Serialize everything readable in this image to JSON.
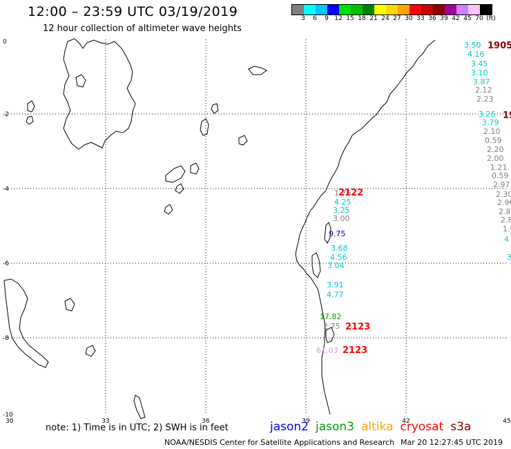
{
  "header": {
    "title": "12:00 – 23:59 UTC 03/19/2019",
    "subtitle": "12 hour collection of altimeter wave heights"
  },
  "legend": {
    "colors": [
      "#808080",
      "#00ffff",
      "#00c8ff",
      "#0000ff",
      "#00e000",
      "#00c000",
      "#008000",
      "#ffff00",
      "#ffd700",
      "#ffa500",
      "#ff0000",
      "#c80000",
      "#8b0000",
      "#a000a0",
      "#d080ff",
      "#ffc0ff",
      "#000000"
    ],
    "labels": [
      "3",
      "6",
      "9",
      "12",
      "15",
      "18",
      "21",
      "24",
      "27",
      "30",
      "33",
      "36",
      "39",
      "42",
      "45",
      "70",
      "(ft)"
    ]
  },
  "axes": {
    "x_ticks": [
      "30",
      "33",
      "36",
      "39",
      "42",
      "45"
    ],
    "y_ticks": [
      "0",
      "-2",
      "-4",
      "-6",
      "-8",
      "-10"
    ]
  },
  "passes": [
    {
      "label": "1905",
      "color": "#8b0000"
    },
    {
      "label": "19",
      "color": "#8b0000"
    },
    {
      "label": "2122",
      "color": "#ff0000"
    },
    {
      "label": "2123",
      "color": "#ff0000"
    },
    {
      "label": "2123",
      "color": "#ff0000"
    }
  ],
  "values": [
    {
      "text": "3.50",
      "color": "#00c8c8"
    },
    {
      "text": "4.16",
      "color": "#00c8c8"
    },
    {
      "text": "3.45",
      "color": "#00c8c8"
    },
    {
      "text": "3.10",
      "color": "#00c8c8"
    },
    {
      "text": "3.87",
      "color": "#00c8c8"
    },
    {
      "text": "2.12",
      "color": "#808080"
    },
    {
      "text": "2.23",
      "color": "#808080"
    },
    {
      "text": "3.26",
      "color": "#00c8c8"
    },
    {
      "text": "3.79",
      "color": "#00c8c8"
    },
    {
      "text": "2.10",
      "color": "#808080"
    },
    {
      "text": "0.59",
      "color": "#808080"
    },
    {
      "text": "2.20",
      "color": "#808080"
    },
    {
      "text": "2.00",
      "color": "#808080"
    },
    {
      "text": "1.21",
      "color": "#808080"
    },
    {
      "text": "0.59",
      "color": "#808080"
    },
    {
      "text": "2.97",
      "color": "#808080"
    },
    {
      "text": "2.30",
      "color": "#808080"
    },
    {
      "text": "2.90",
      "color": "#808080"
    },
    {
      "text": "2.8",
      "color": "#808080"
    },
    {
      "text": "2.8",
      "color": "#808080"
    },
    {
      "text": "1.4",
      "color": "#808080"
    },
    {
      "text": "4",
      "color": "#00c8c8"
    },
    {
      "text": "3",
      "color": "#00c8c8"
    },
    {
      "text": "1.76",
      "color": "#808080"
    },
    {
      "text": "4.25",
      "color": "#00c8c8"
    },
    {
      "text": "3.25",
      "color": "#00c8c8"
    },
    {
      "text": "3.00",
      "color": "#808080"
    },
    {
      "text": "9.75",
      "color": "#0000c8"
    },
    {
      "text": "3.68",
      "color": "#00c8c8"
    },
    {
      "text": "4.56",
      "color": "#00c8c8"
    },
    {
      "text": "3.04",
      "color": "#00c8c8"
    },
    {
      "text": "3.91",
      "color": "#00c8c8"
    },
    {
      "text": "4.77",
      "color": "#00c8c8"
    },
    {
      "text": "17.82",
      "color": "#00a000"
    },
    {
      "text": "2.75",
      "color": "#808080"
    },
    {
      "text": "61.03",
      "color": "#ff80ff"
    }
  ],
  "footer": {
    "note": "note:  1) Time is in UTC;  2) SWH is in feet",
    "satellites": [
      {
        "name": "jason2",
        "color": "#0000ff"
      },
      {
        "name": "jason3",
        "color": "#00a000"
      },
      {
        "name": "altika",
        "color": "#ffa500"
      },
      {
        "name": "cryosat",
        "color": "#ff0000"
      },
      {
        "name": "s3a",
        "color": "#8b0000"
      }
    ],
    "credit": "NOAA/NESDIS Center for Satellite Applications and Research",
    "timestamp": "Mar 20 12:27:45 UTC 2019"
  }
}
